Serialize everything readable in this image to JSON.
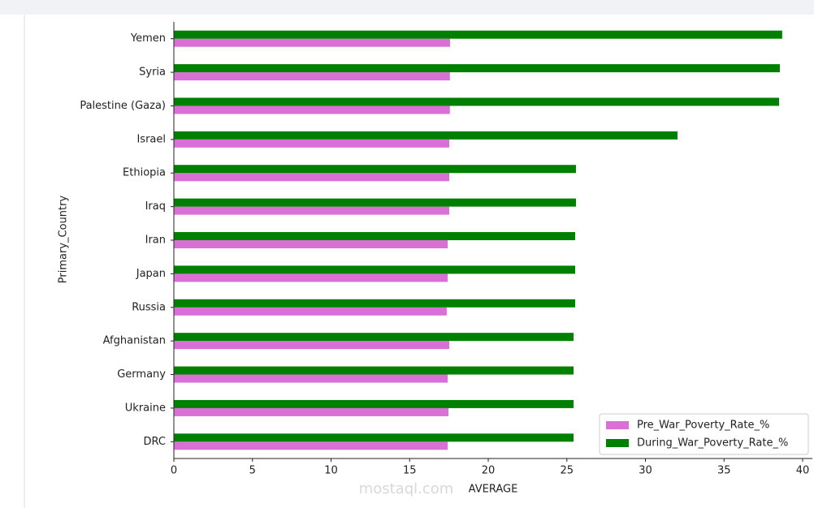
{
  "chart_data": {
    "type": "barh",
    "categories": [
      "Yemen",
      "Syria",
      "Palestine (Gaza)",
      "Israel",
      "Ethiopia",
      "Iraq",
      "Iran",
      "Japan",
      "Russia",
      "Afghanistan",
      "Germany",
      "Ukraine",
      "DRC"
    ],
    "series": [
      {
        "name": "Pre_War_Poverty_Rate_%",
        "color": "#da70d6",
        "values": [
          17.57,
          17.56,
          17.56,
          17.52,
          17.52,
          17.52,
          17.42,
          17.42,
          17.36,
          17.52,
          17.42,
          17.47,
          17.42
        ]
      },
      {
        "name": "During_War_Poverty_Rate_%",
        "color": "#008000",
        "values": [
          38.7,
          38.55,
          38.5,
          32.04,
          25.58,
          25.58,
          25.53,
          25.53,
          25.53,
          25.43,
          25.43,
          25.43,
          25.43
        ]
      }
    ],
    "xlabel": "AVERAGE",
    "ylabel": "Primary_Country",
    "xlim": [
      0,
      40
    ],
    "xticks": [
      0,
      5,
      10,
      15,
      20,
      25,
      30,
      35,
      40
    ],
    "legend": "lower right",
    "watermark": "mostaql.com"
  }
}
